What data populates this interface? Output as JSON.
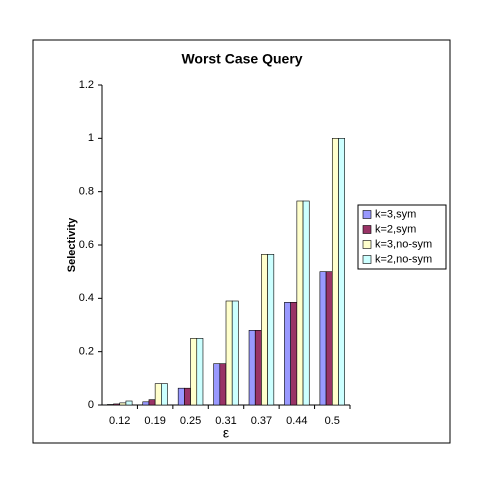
{
  "chart_data": {
    "type": "bar",
    "title": "Worst  Case Query",
    "x_label": "ε",
    "y_label": "Selectivity",
    "categories": [
      "0.12",
      "0.19",
      "0.25",
      "0.31",
      "0.37",
      "0.44",
      "0.5"
    ],
    "series": [
      {
        "name": "k=3,sym",
        "color": "#9999ff",
        "values": [
          0.002,
          0.012,
          0.063,
          0.155,
          0.28,
          0.385,
          0.5
        ]
      },
      {
        "name": "k=2,sym",
        "color": "#993366",
        "values": [
          0.004,
          0.02,
          0.063,
          0.155,
          0.28,
          0.385,
          0.5
        ]
      },
      {
        "name": "k=3,no-sym",
        "color": "#ffffcc",
        "values": [
          0.008,
          0.08,
          0.25,
          0.39,
          0.565,
          0.765,
          1
        ]
      },
      {
        "name": "k=2,no-sym",
        "color": "#ccffff",
        "values": [
          0.015,
          0.08,
          0.25,
          0.39,
          0.565,
          0.765,
          1
        ]
      }
    ],
    "ylim": [
      0,
      1.2
    ],
    "yticks": [
      0,
      0.2,
      0.4,
      0.6,
      0.8,
      1,
      1.2
    ],
    "grid": false,
    "legend": "right"
  }
}
